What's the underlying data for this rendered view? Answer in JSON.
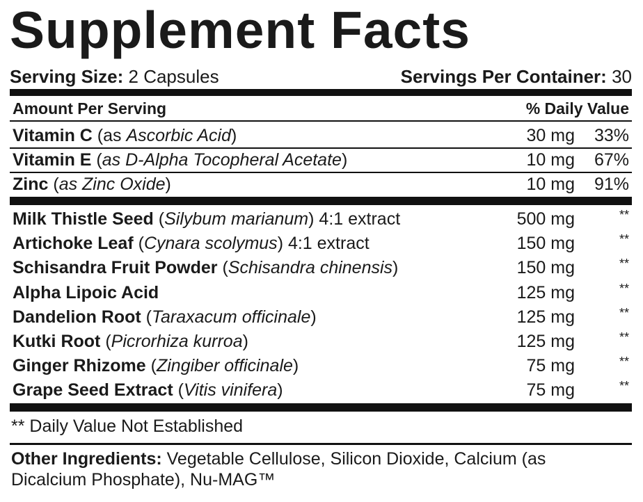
{
  "title": "Supplement Facts",
  "serving": {
    "size_label": "Serving Size:",
    "size_value": " 2 Capsules",
    "per_container_label": "Servings Per Container:",
    "per_container_value": " 30"
  },
  "header": {
    "amount": "Amount Per Serving",
    "daily_value": "% Daily Value"
  },
  "vitamins": [
    {
      "name": "Vitamin C",
      "detail_pre": " (as ",
      "detail_italic": "Ascorbic Acid",
      "detail_post": ")",
      "amount": "30 mg",
      "dv": "33%"
    },
    {
      "name": "Vitamin E",
      "detail_pre": " (",
      "detail_italic": "as D-Alpha Tocopheral Acetate",
      "detail_post": ")",
      "amount": "10 mg",
      "dv": "67%"
    },
    {
      "name": "Zinc",
      "detail_pre": " (",
      "detail_italic": "as Zinc Oxide",
      "detail_post": ")",
      "amount": "10 mg",
      "dv": "91%"
    }
  ],
  "blend": [
    {
      "name": "Milk Thistle Seed",
      "detail_pre": " (",
      "detail_italic": "Silybum marianum",
      "detail_post": ") 4:1 extract",
      "amount": "500 mg",
      "dv": "**"
    },
    {
      "name": "Artichoke Leaf",
      "detail_pre": " (",
      "detail_italic": "Cynara scolymus",
      "detail_post": ") 4:1 extract",
      "amount": "150 mg",
      "dv": "**"
    },
    {
      "name": "Schisandra Fruit Powder",
      "detail_pre": " (",
      "detail_italic": "Schisandra chinensis",
      "detail_post": ")",
      "amount": "150 mg",
      "dv": "**"
    },
    {
      "name": "Alpha Lipoic Acid",
      "detail_pre": "",
      "detail_italic": "",
      "detail_post": "",
      "amount": "125 mg",
      "dv": "**"
    },
    {
      "name": "Dandelion Root",
      "detail_pre": " (",
      "detail_italic": "Taraxacum officinale",
      "detail_post": ")",
      "amount": "125 mg",
      "dv": "**"
    },
    {
      "name": "Kutki Root",
      "detail_pre": " (",
      "detail_italic": "Picrorhiza kurroa",
      "detail_post": ")",
      "amount": "125 mg",
      "dv": "**"
    },
    {
      "name": "Ginger Rhizome",
      "detail_pre": " (",
      "detail_italic": "Zingiber officinale",
      "detail_post": ")",
      "amount": "75 mg",
      "dv": "**"
    },
    {
      "name": "Grape Seed Extract",
      "detail_pre": " (",
      "detail_italic": "Vitis vinifera",
      "detail_post": ")",
      "amount": "75 mg",
      "dv": "**"
    }
  ],
  "footnote": "** Daily Value Not Established",
  "other": {
    "label": "Other Ingredients:",
    "text": " Vegetable Cellulose, Silicon Dioxide, Calcium (as Dicalcium Phosphate), Nu-MAG™"
  }
}
